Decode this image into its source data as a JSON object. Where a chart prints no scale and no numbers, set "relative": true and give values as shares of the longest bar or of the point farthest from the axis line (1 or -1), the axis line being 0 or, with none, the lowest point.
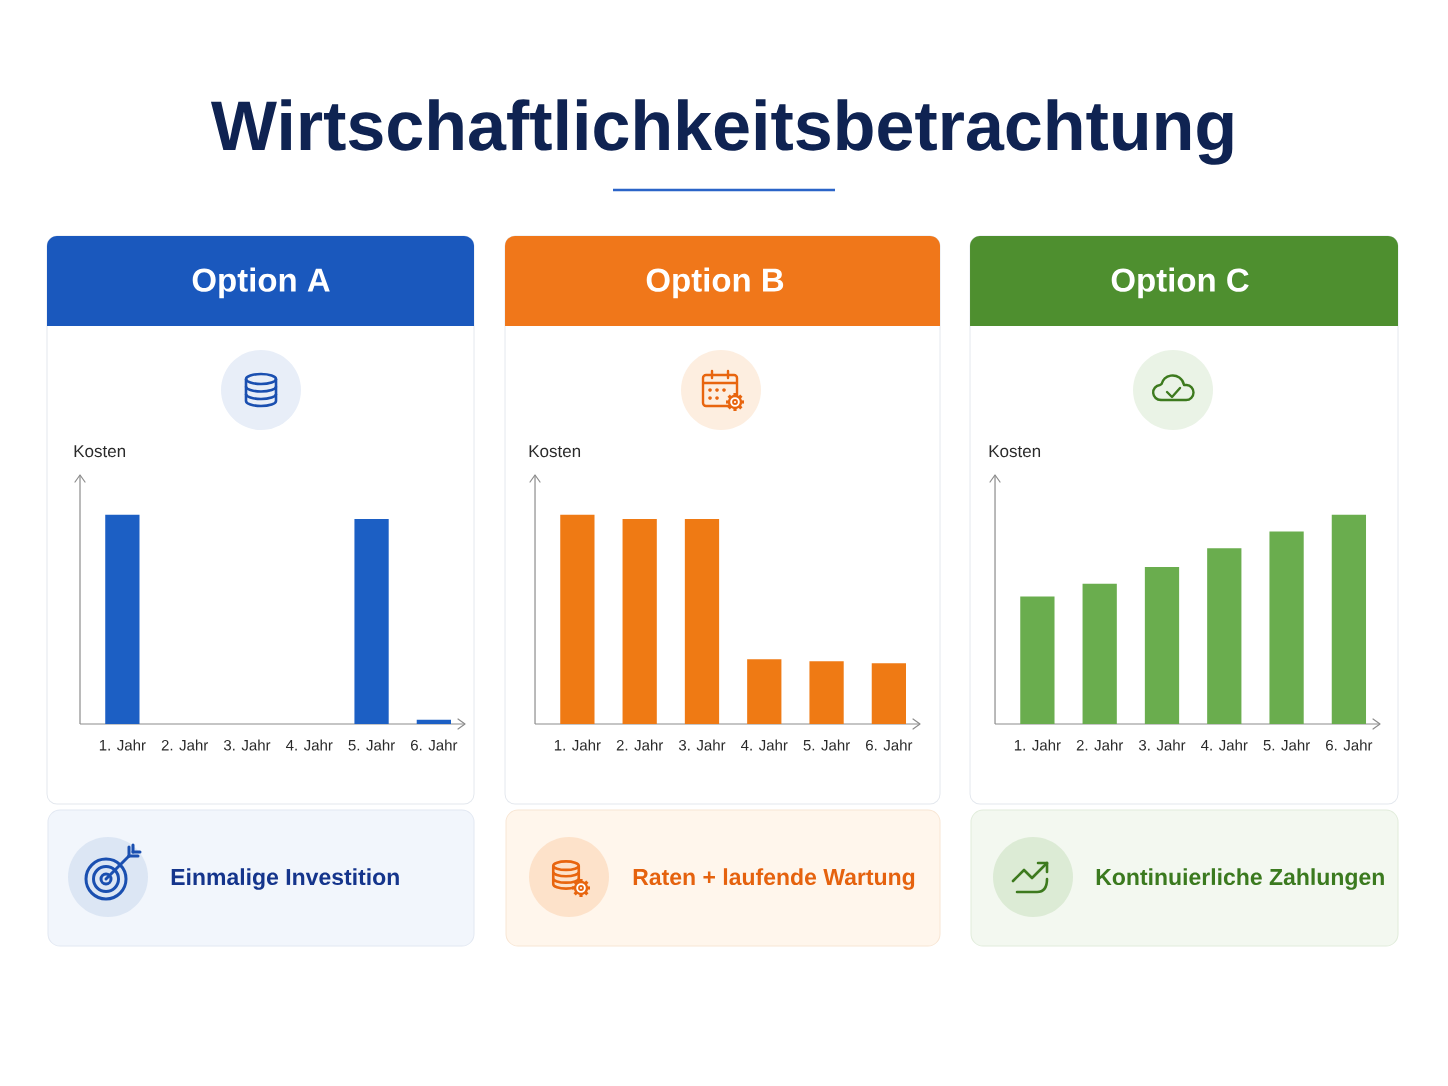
{
  "chart_data": [
    {
      "type": "other",
      "title": "Wirtschaftlichkeitsbetrachtung"
    },
    {
      "type": "bar",
      "title": "Option A",
      "ylabel": "Kosten",
      "categories": [
        "1. Jahr",
        "2. Jahr",
        "3. Jahr",
        "4. Jahr",
        "5. Jahr",
        "6. Jahr"
      ],
      "values": [
        1,
        0,
        0,
        0,
        0.98,
        0.02
      ],
      "color": "#1c5fc4",
      "relative": true,
      "annotations": [
        "Einmalige Investition"
      ]
    },
    {
      "type": "bar",
      "title": "Option B",
      "ylabel": "Kosten",
      "categories": [
        "1. Jahr",
        "2. Jahr",
        "3. Jahr",
        "4. Jahr",
        "5. Jahr",
        "6. Jahr"
      ],
      "values": [
        1,
        0.98,
        0.98,
        0.31,
        0.3,
        0.29
      ],
      "color": "#ef7a14",
      "relative": true,
      "annotations": [
        "Raten + laufende Wartung"
      ]
    },
    {
      "type": "bar",
      "title": "Option C",
      "ylabel": "Kosten",
      "categories": [
        "1. Jahr",
        "2. Jahr",
        "3. Jahr",
        "4. Jahr",
        "5. Jahr",
        "6. Jahr"
      ],
      "values": [
        0.61,
        0.67,
        0.75,
        0.84,
        0.92,
        1
      ],
      "color": "#6aad4e",
      "relative": true,
      "annotations": [
        "Kontinuierliche Zahlungen"
      ]
    }
  ]
}
